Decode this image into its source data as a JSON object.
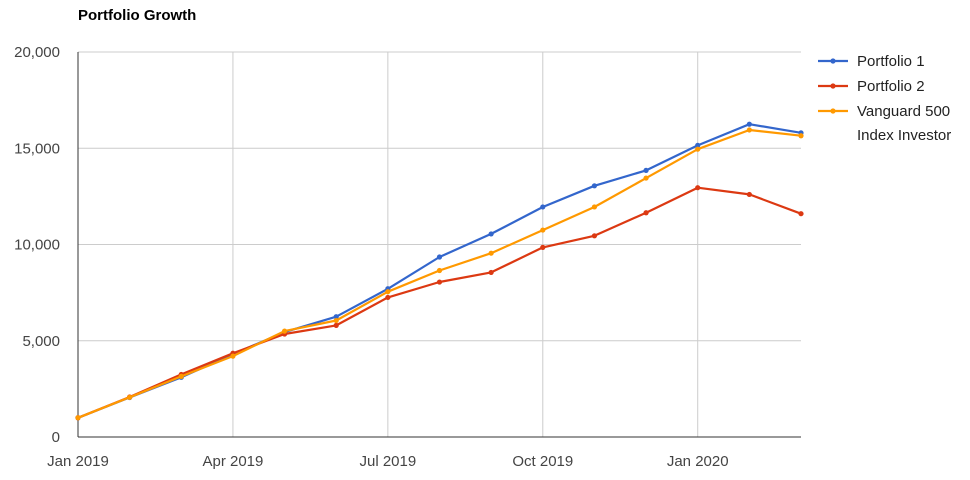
{
  "chart_data": {
    "type": "line",
    "title": "Portfolio Growth",
    "xlabel": "",
    "ylabel": "",
    "x": [
      "2019-01",
      "2019-02",
      "2019-03",
      "2019-04",
      "2019-05",
      "2019-06",
      "2019-07",
      "2019-08",
      "2019-09",
      "2019-10",
      "2019-11",
      "2019-12",
      "2020-01",
      "2020-02",
      "2020-03"
    ],
    "x_ticks": [
      "Jan 2019",
      "Apr 2019",
      "Jul 2019",
      "Oct 2019",
      "Jan 2020"
    ],
    "y_ticks": [
      "0",
      "5,000",
      "10,000",
      "15,000",
      "20,000"
    ],
    "ylim": [
      0,
      20000
    ],
    "grid": true,
    "legend_position": "right",
    "series": [
      {
        "name": "Portfolio 1",
        "color": "#3366cc",
        "values": [
          1000,
          2050,
          3100,
          4300,
          5450,
          6250,
          7700,
          9350,
          10550,
          11950,
          13050,
          13850,
          15150,
          16250,
          15800
        ]
      },
      {
        "name": "Portfolio 2",
        "color": "#dc3912",
        "values": [
          1000,
          2080,
          3250,
          4350,
          5350,
          5800,
          7250,
          8050,
          8550,
          9850,
          10450,
          11650,
          12950,
          12600,
          11600
        ]
      },
      {
        "name": "Vanguard 500 Index Investor",
        "color": "#ff9900",
        "legend_lines": [
          "Vanguard 500",
          "Index Investor"
        ],
        "values": [
          1000,
          2060,
          3150,
          4200,
          5500,
          6050,
          7550,
          8650,
          9550,
          10750,
          11950,
          13450,
          14950,
          15950,
          15650
        ]
      }
    ]
  }
}
